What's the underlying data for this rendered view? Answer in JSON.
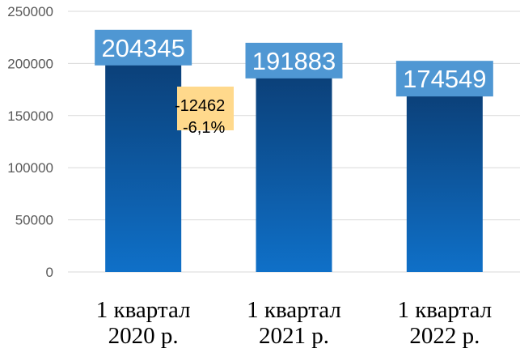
{
  "chart_data": {
    "type": "bar",
    "categories": [
      [
        "1 квартал",
        "2020 р."
      ],
      [
        "1 квартал",
        "2021 р."
      ],
      [
        "1 квартал",
        "2022 р."
      ]
    ],
    "values": [
      204345,
      191883,
      174549
    ],
    "data_labels": [
      "204345",
      "191883",
      "174549"
    ],
    "ylim": [
      0,
      250000
    ],
    "yticks": [
      "0",
      "50000",
      "100000",
      "150000",
      "200000",
      "250000"
    ],
    "grid": true,
    "annotation": {
      "lines": [
        "-12462",
        "-6,1%"
      ],
      "fill": "#FFD98C"
    },
    "colors": {
      "bar_top": "#0B3F77",
      "bar_bottom": "#0F70C8",
      "label_bg": "#4F97D3",
      "grid": "#D9D9D9"
    }
  }
}
